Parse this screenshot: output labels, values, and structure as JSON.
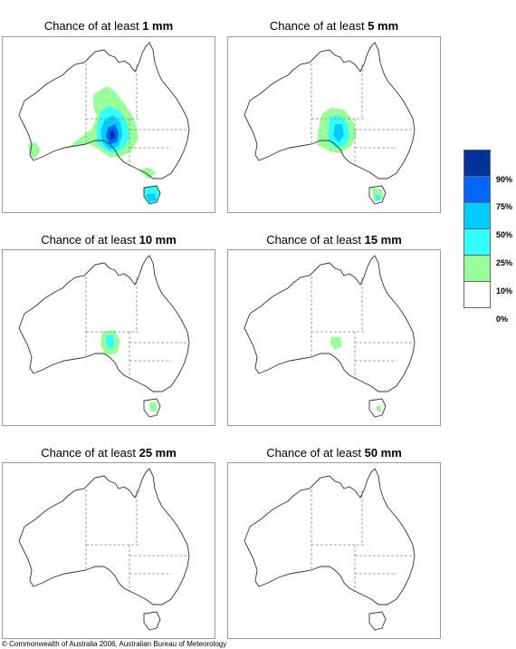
{
  "panels": [
    {
      "prefix": "Chance of at least ",
      "amount": "1 mm"
    },
    {
      "prefix": "Chance of at least ",
      "amount": "5 mm"
    },
    {
      "prefix": "Chance of at least ",
      "amount": "10 mm"
    },
    {
      "prefix": "Chance of at least ",
      "amount": "15 mm"
    },
    {
      "prefix": "Chance of at least ",
      "amount": "25 mm"
    },
    {
      "prefix": "Chance of at least ",
      "amount": "50 mm"
    }
  ],
  "legend": {
    "labels": [
      "90%",
      "75%",
      "50%",
      "25%",
      "10%",
      "0%"
    ],
    "colors": [
      "#003399",
      "#0066ff",
      "#00ccff",
      "#33ffff",
      "#99ff99",
      "#ffffff"
    ]
  },
  "copyright": "© Commonwealth of Australia 2006, Australian Bureau of Meteorology"
}
